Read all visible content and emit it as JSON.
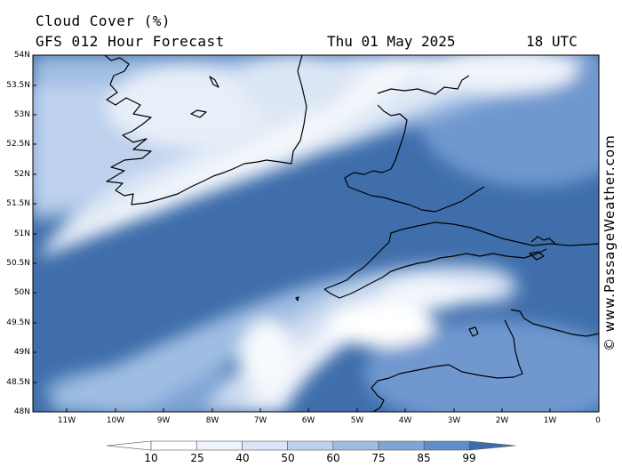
{
  "header": {
    "title": "Cloud Cover (%)",
    "subtitle": "GFS 012 Hour Forecast",
    "date": "Thu 01 May 2025",
    "time": "18 UTC"
  },
  "map": {
    "lat_labels": [
      "54N",
      "53.5N",
      "53N",
      "52.5N",
      "52N",
      "51.5N",
      "51N",
      "50.5N",
      "50N",
      "49.5N",
      "49N",
      "48.5N",
      "48N"
    ],
    "lon_labels": [
      "11W",
      "10W",
      "9W",
      "8W",
      "7W",
      "6W",
      "5W",
      "4W",
      "3W",
      "2W",
      "1W",
      "0"
    ]
  },
  "legend": {
    "levels": [
      "10",
      "25",
      "40",
      "50",
      "60",
      "75",
      "85",
      "99"
    ],
    "colors": [
      "#ffffff",
      "#eef3fb",
      "#d9e5f5",
      "#bdd1ed",
      "#9fbde2",
      "#7fa5d6",
      "#5e8dc8",
      "#3e6daa"
    ]
  },
  "credit": "© www.PassageWeather.com"
}
